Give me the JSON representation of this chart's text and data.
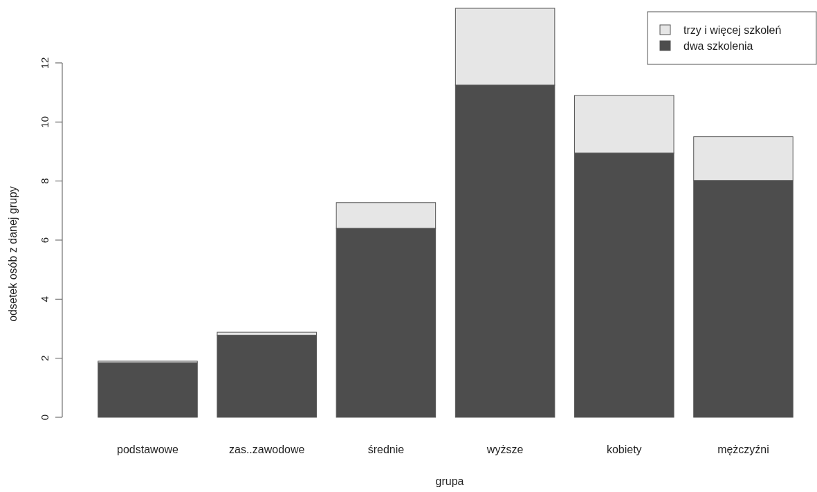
{
  "chart_data": {
    "type": "bar",
    "stacked": true,
    "xlabel": "grupa",
    "ylabel": "odsetek osób z danej grupy",
    "categories": [
      "podstawowe",
      "zas..zawodowe",
      "średnie",
      "wyższe",
      "kobiety",
      "mężczyźni"
    ],
    "series": [
      {
        "name": "dwa szkolenia",
        "color": "#4d4d4d",
        "values": [
          1.85,
          2.78,
          6.4,
          11.25,
          8.95,
          8.02
        ]
      },
      {
        "name": "trzy i więcej szkoleń",
        "color": "#e6e6e6",
        "values": [
          0.05,
          0.1,
          0.87,
          2.6,
          1.95,
          1.48
        ]
      }
    ],
    "ylim": [
      0,
      13.85
    ],
    "yticks": [
      0,
      2,
      4,
      6,
      8,
      10,
      12
    ],
    "legend": "top right",
    "grid": false
  }
}
